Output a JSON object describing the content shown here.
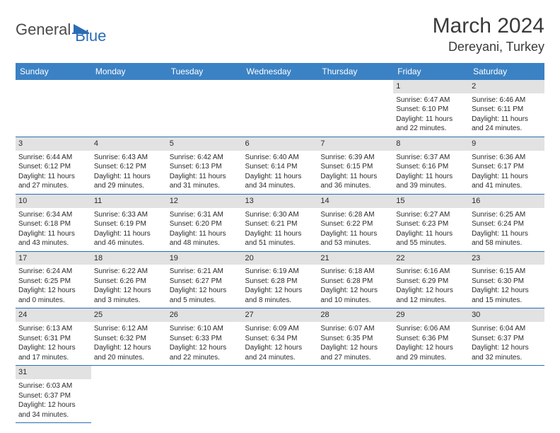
{
  "logo": {
    "general": "General",
    "blue": "Blue"
  },
  "title": "March 2024",
  "location": "Dereyani, Turkey",
  "colors": {
    "header_bg": "#3b82c4",
    "header_text": "#ffffff",
    "daynum_bg": "#e2e2e2",
    "border": "#2a6db5",
    "text": "#2a2a2a",
    "logo_gray": "#4a4a4a",
    "logo_blue": "#2a6db5"
  },
  "day_names": [
    "Sunday",
    "Monday",
    "Tuesday",
    "Wednesday",
    "Thursday",
    "Friday",
    "Saturday"
  ],
  "weeks": [
    [
      null,
      null,
      null,
      null,
      null,
      {
        "n": "1",
        "sr": "Sunrise: 6:47 AM",
        "ss": "Sunset: 6:10 PM",
        "d1": "Daylight: 11 hours",
        "d2": "and 22 minutes."
      },
      {
        "n": "2",
        "sr": "Sunrise: 6:46 AM",
        "ss": "Sunset: 6:11 PM",
        "d1": "Daylight: 11 hours",
        "d2": "and 24 minutes."
      }
    ],
    [
      {
        "n": "3",
        "sr": "Sunrise: 6:44 AM",
        "ss": "Sunset: 6:12 PM",
        "d1": "Daylight: 11 hours",
        "d2": "and 27 minutes."
      },
      {
        "n": "4",
        "sr": "Sunrise: 6:43 AM",
        "ss": "Sunset: 6:12 PM",
        "d1": "Daylight: 11 hours",
        "d2": "and 29 minutes."
      },
      {
        "n": "5",
        "sr": "Sunrise: 6:42 AM",
        "ss": "Sunset: 6:13 PM",
        "d1": "Daylight: 11 hours",
        "d2": "and 31 minutes."
      },
      {
        "n": "6",
        "sr": "Sunrise: 6:40 AM",
        "ss": "Sunset: 6:14 PM",
        "d1": "Daylight: 11 hours",
        "d2": "and 34 minutes."
      },
      {
        "n": "7",
        "sr": "Sunrise: 6:39 AM",
        "ss": "Sunset: 6:15 PM",
        "d1": "Daylight: 11 hours",
        "d2": "and 36 minutes."
      },
      {
        "n": "8",
        "sr": "Sunrise: 6:37 AM",
        "ss": "Sunset: 6:16 PM",
        "d1": "Daylight: 11 hours",
        "d2": "and 39 minutes."
      },
      {
        "n": "9",
        "sr": "Sunrise: 6:36 AM",
        "ss": "Sunset: 6:17 PM",
        "d1": "Daylight: 11 hours",
        "d2": "and 41 minutes."
      }
    ],
    [
      {
        "n": "10",
        "sr": "Sunrise: 6:34 AM",
        "ss": "Sunset: 6:18 PM",
        "d1": "Daylight: 11 hours",
        "d2": "and 43 minutes."
      },
      {
        "n": "11",
        "sr": "Sunrise: 6:33 AM",
        "ss": "Sunset: 6:19 PM",
        "d1": "Daylight: 11 hours",
        "d2": "and 46 minutes."
      },
      {
        "n": "12",
        "sr": "Sunrise: 6:31 AM",
        "ss": "Sunset: 6:20 PM",
        "d1": "Daylight: 11 hours",
        "d2": "and 48 minutes."
      },
      {
        "n": "13",
        "sr": "Sunrise: 6:30 AM",
        "ss": "Sunset: 6:21 PM",
        "d1": "Daylight: 11 hours",
        "d2": "and 51 minutes."
      },
      {
        "n": "14",
        "sr": "Sunrise: 6:28 AM",
        "ss": "Sunset: 6:22 PM",
        "d1": "Daylight: 11 hours",
        "d2": "and 53 minutes."
      },
      {
        "n": "15",
        "sr": "Sunrise: 6:27 AM",
        "ss": "Sunset: 6:23 PM",
        "d1": "Daylight: 11 hours",
        "d2": "and 55 minutes."
      },
      {
        "n": "16",
        "sr": "Sunrise: 6:25 AM",
        "ss": "Sunset: 6:24 PM",
        "d1": "Daylight: 11 hours",
        "d2": "and 58 minutes."
      }
    ],
    [
      {
        "n": "17",
        "sr": "Sunrise: 6:24 AM",
        "ss": "Sunset: 6:25 PM",
        "d1": "Daylight: 12 hours",
        "d2": "and 0 minutes."
      },
      {
        "n": "18",
        "sr": "Sunrise: 6:22 AM",
        "ss": "Sunset: 6:26 PM",
        "d1": "Daylight: 12 hours",
        "d2": "and 3 minutes."
      },
      {
        "n": "19",
        "sr": "Sunrise: 6:21 AM",
        "ss": "Sunset: 6:27 PM",
        "d1": "Daylight: 12 hours",
        "d2": "and 5 minutes."
      },
      {
        "n": "20",
        "sr": "Sunrise: 6:19 AM",
        "ss": "Sunset: 6:28 PM",
        "d1": "Daylight: 12 hours",
        "d2": "and 8 minutes."
      },
      {
        "n": "21",
        "sr": "Sunrise: 6:18 AM",
        "ss": "Sunset: 6:28 PM",
        "d1": "Daylight: 12 hours",
        "d2": "and 10 minutes."
      },
      {
        "n": "22",
        "sr": "Sunrise: 6:16 AM",
        "ss": "Sunset: 6:29 PM",
        "d1": "Daylight: 12 hours",
        "d2": "and 12 minutes."
      },
      {
        "n": "23",
        "sr": "Sunrise: 6:15 AM",
        "ss": "Sunset: 6:30 PM",
        "d1": "Daylight: 12 hours",
        "d2": "and 15 minutes."
      }
    ],
    [
      {
        "n": "24",
        "sr": "Sunrise: 6:13 AM",
        "ss": "Sunset: 6:31 PM",
        "d1": "Daylight: 12 hours",
        "d2": "and 17 minutes."
      },
      {
        "n": "25",
        "sr": "Sunrise: 6:12 AM",
        "ss": "Sunset: 6:32 PM",
        "d1": "Daylight: 12 hours",
        "d2": "and 20 minutes."
      },
      {
        "n": "26",
        "sr": "Sunrise: 6:10 AM",
        "ss": "Sunset: 6:33 PM",
        "d1": "Daylight: 12 hours",
        "d2": "and 22 minutes."
      },
      {
        "n": "27",
        "sr": "Sunrise: 6:09 AM",
        "ss": "Sunset: 6:34 PM",
        "d1": "Daylight: 12 hours",
        "d2": "and 24 minutes."
      },
      {
        "n": "28",
        "sr": "Sunrise: 6:07 AM",
        "ss": "Sunset: 6:35 PM",
        "d1": "Daylight: 12 hours",
        "d2": "and 27 minutes."
      },
      {
        "n": "29",
        "sr": "Sunrise: 6:06 AM",
        "ss": "Sunset: 6:36 PM",
        "d1": "Daylight: 12 hours",
        "d2": "and 29 minutes."
      },
      {
        "n": "30",
        "sr": "Sunrise: 6:04 AM",
        "ss": "Sunset: 6:37 PM",
        "d1": "Daylight: 12 hours",
        "d2": "and 32 minutes."
      }
    ],
    [
      {
        "n": "31",
        "sr": "Sunrise: 6:03 AM",
        "ss": "Sunset: 6:37 PM",
        "d1": "Daylight: 12 hours",
        "d2": "and 34 minutes."
      },
      null,
      null,
      null,
      null,
      null,
      null
    ]
  ]
}
